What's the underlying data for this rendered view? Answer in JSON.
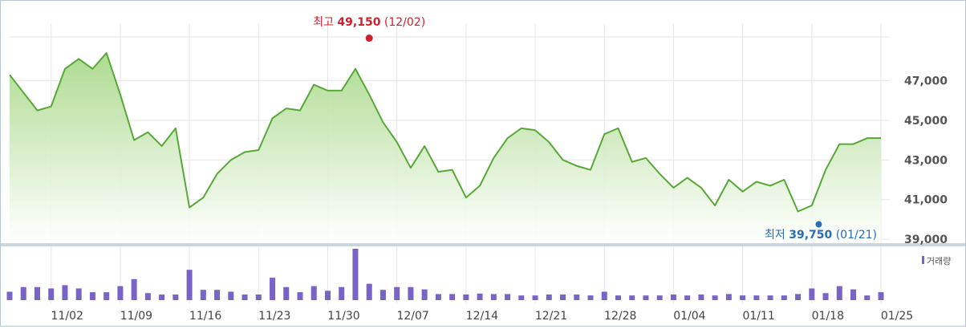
{
  "chart_data": {
    "type": "area",
    "series": [
      {
        "values": [
          47300,
          46400,
          45500,
          45700,
          47600,
          48100,
          47600,
          48400,
          46300,
          44000,
          44400,
          43700,
          44600,
          40600,
          41100,
          42300,
          43000,
          43400,
          43500,
          45100,
          45600,
          45500,
          46800,
          46500,
          46500,
          47600,
          46300,
          44900,
          43900,
          42600,
          43700,
          42400,
          42500,
          41100,
          41700,
          43100,
          44100,
          44600,
          44500,
          43900,
          43000,
          42700,
          42500,
          44300,
          44600,
          42900,
          43100,
          42300,
          41600,
          42100,
          41600,
          40700,
          42000,
          41400,
          41900,
          41700,
          42000,
          40400,
          40700,
          42500,
          43800,
          43800,
          44100,
          44100
        ]
      },
      {
        "name": "거래량",
        "values": [
          18,
          28,
          28,
          25,
          32,
          25,
          17,
          17,
          30,
          45,
          15,
          12,
          12,
          65,
          22,
          22,
          18,
          12,
          12,
          48,
          28,
          17,
          30,
          20,
          28,
          110,
          35,
          22,
          28,
          28,
          23,
          13,
          13,
          12,
          14,
          13,
          13,
          10,
          10,
          12,
          12,
          12,
          10,
          18,
          10,
          10,
          10,
          10,
          12,
          10,
          12,
          10,
          13,
          10,
          10,
          10,
          10,
          13,
          25,
          15,
          30,
          23,
          10,
          17
        ]
      }
    ],
    "x_tick_labels": [
      "11/02",
      "11/09",
      "11/16",
      "11/23",
      "11/30",
      "12/07",
      "12/14",
      "12/21",
      "12/28",
      "01/04",
      "01/11",
      "01/18",
      "01/25"
    ],
    "y_tick_labels": [
      "47,000",
      "45,000",
      "43,000",
      "41,000",
      "39,000"
    ],
    "ylim": [
      38800,
      49900
    ],
    "grid": true,
    "annotations": {
      "high": {
        "prefix": "최고",
        "value": "49,150",
        "date": "(12/02)",
        "color": "#d0202b"
      },
      "low": {
        "prefix": "최저",
        "value": "39,750",
        "date": "(01/21)",
        "color": "#2a6db5"
      }
    },
    "volume_legend": "거래량",
    "colors": {
      "line": "#58a838",
      "fill_top": "#a9d98a",
      "fill_bottom": "#ffffff",
      "volume": "#7a63c6",
      "grid": "#e6e6e6"
    }
  }
}
